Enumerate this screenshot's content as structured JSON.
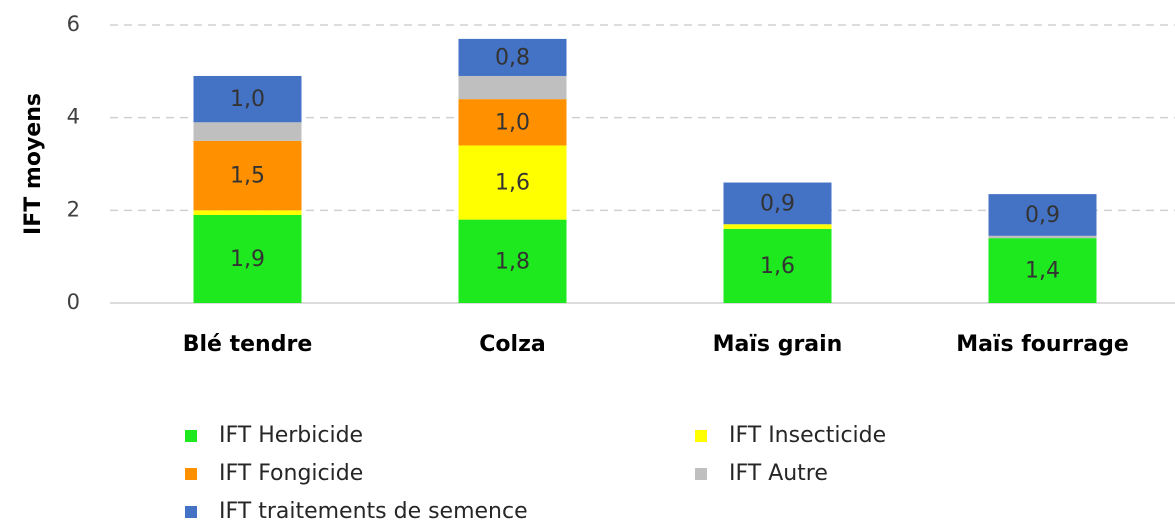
{
  "chart_data": {
    "type": "stacked_bar",
    "y_label": "IFT moyens",
    "categories": [
      "Blé tendre",
      "Colza",
      "Maïs grain",
      "Maïs fourrage"
    ],
    "series": [
      {
        "name": "IFT Herbicide",
        "color": "#1ee81e",
        "values": [
          1.9,
          1.8,
          1.6,
          1.4
        ],
        "value_labels": [
          "1,9",
          "1,8",
          "1,6",
          "1,4"
        ]
      },
      {
        "name": "IFT Insecticide",
        "color": "#ffff00",
        "values": [
          0.1,
          1.6,
          0.1,
          0
        ],
        "value_labels": [
          null,
          "1,6",
          null,
          null
        ]
      },
      {
        "name": "IFT Fongicide",
        "color": "#ff9100",
        "values": [
          1.5,
          1.0,
          0,
          0
        ],
        "value_labels": [
          "1,5",
          "1,0",
          null,
          null
        ]
      },
      {
        "name": "IFT Autre",
        "color": "#bfbfbf",
        "values": [
          0.4,
          0.5,
          0,
          0.05
        ],
        "value_labels": [
          null,
          null,
          null,
          null
        ]
      },
      {
        "name": "IFT traitements de semence",
        "color": "#4472c4",
        "values": [
          1.0,
          0.8,
          0.9,
          0.9
        ],
        "value_labels": [
          "1,0",
          "0,8",
          "0,9",
          "0,9"
        ]
      }
    ],
    "ylim": [
      0,
      6
    ],
    "yticks": [
      0,
      2,
      4,
      6
    ],
    "grid": true
  }
}
